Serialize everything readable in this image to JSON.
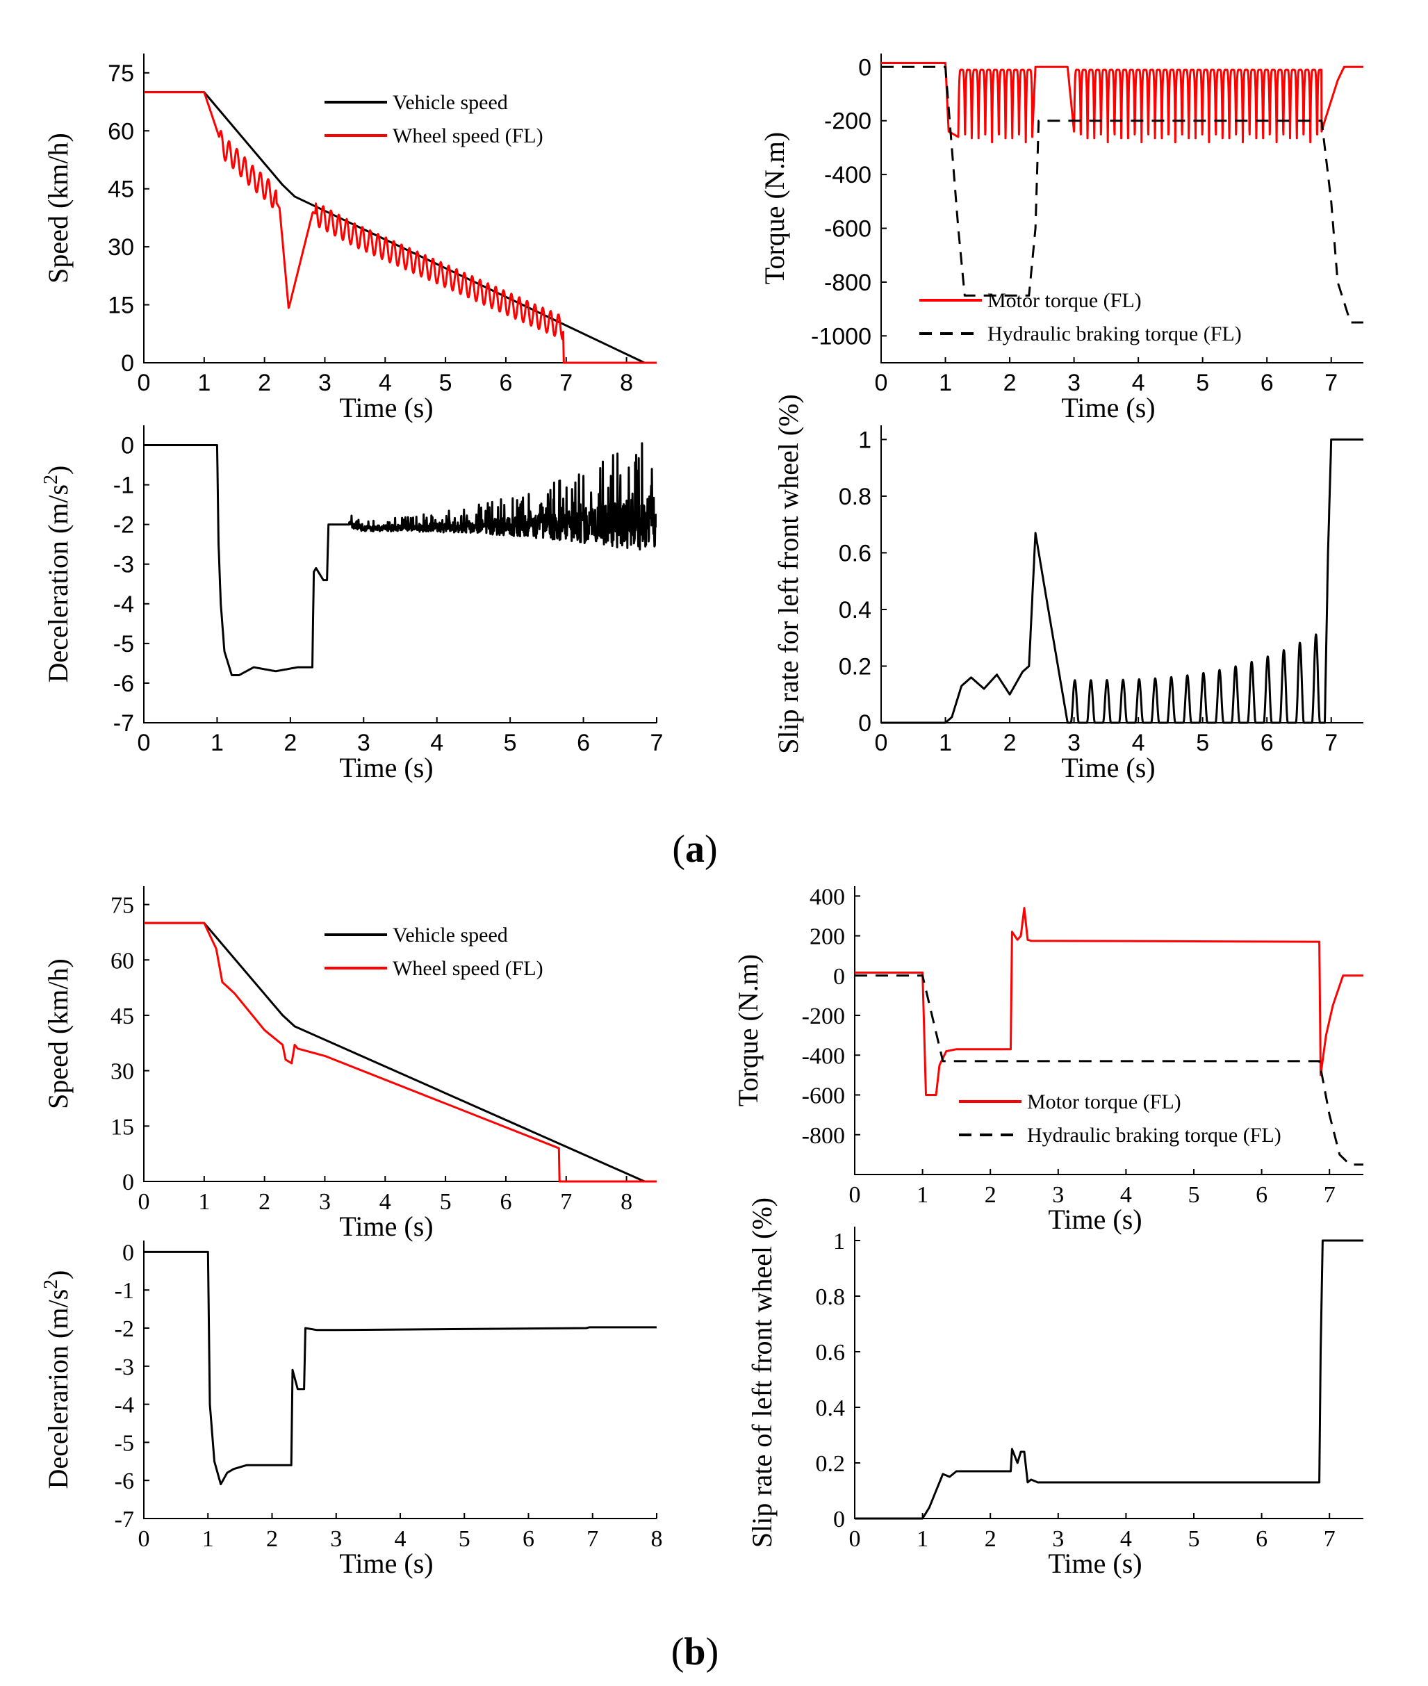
{
  "captions": {
    "a": "a",
    "b": "b"
  },
  "chart_data": [
    {
      "id": "a1",
      "type": "line",
      "xlabel": "Time (s)",
      "ylabel": "Speed (km/h)",
      "xlim": [
        0,
        8.5
      ],
      "ylim": [
        0,
        80
      ],
      "xticks": [
        0,
        1,
        2,
        3,
        4,
        5,
        6,
        7,
        8
      ],
      "yticks": [
        0,
        15,
        30,
        45,
        60,
        75
      ],
      "legend": {
        "position": "top-center",
        "entries": [
          "Vehicle speed",
          "Wheel speed (FL)"
        ]
      },
      "series": [
        {
          "name": "Vehicle speed",
          "color": "#000000",
          "style": "solid",
          "x": [
            0,
            1,
            2.3,
            2.5,
            8.3,
            8.5
          ],
          "y": [
            70,
            70,
            46,
            43,
            0,
            0
          ]
        },
        {
          "name": "Wheel speed (FL)",
          "color": "#ff0000",
          "style": "solid",
          "x": [
            0,
            1,
            1.3,
            1.5,
            1.8,
            2.1,
            2.25,
            2.4,
            2.8,
            3.5,
            4.5,
            5.5,
            6.5,
            6.95,
            6.96,
            7.0,
            8.5
          ],
          "y": [
            70,
            70,
            56,
            53,
            48,
            44,
            40,
            14,
            39,
            33,
            26,
            19,
            12,
            9,
            0,
            0,
            0
          ],
          "oscillation": {
            "start": 1.25,
            "end": 6.95,
            "amplitude_approx": 3
          }
        }
      ]
    },
    {
      "id": "a2",
      "type": "line",
      "xlabel": "Time (s)",
      "ylabel": "Torque (N.m)",
      "xlim": [
        0,
        7.5
      ],
      "ylim": [
        -1100,
        50
      ],
      "xticks": [
        0,
        1,
        2,
        3,
        4,
        5,
        6,
        7
      ],
      "yticks": [
        0,
        -200,
        -400,
        -600,
        -800,
        -1000
      ],
      "legend": {
        "position": "bottom-center",
        "entries": [
          "Motor torque (FL)",
          "Hydraulic braking torque (FL)"
        ]
      },
      "series": [
        {
          "name": "Motor torque (FL)",
          "color": "#ff0000",
          "style": "solid",
          "x": [
            0,
            1.0,
            1.05,
            1.2,
            2.35,
            2.4,
            2.9,
            3.0,
            6.85,
            6.9,
            7.1,
            7.2,
            7.5
          ],
          "y": [
            15,
            15,
            -240,
            -260,
            -260,
            0,
            0,
            -240,
            -240,
            -200,
            -50,
            0,
            0
          ],
          "oscillation": {
            "segments": [
              [
                1.2,
                2.35
              ],
              [
                3.0,
                6.85
              ]
            ],
            "range": [
              -280,
              -10
            ]
          }
        },
        {
          "name": "Hydraulic braking torque (FL)",
          "color": "#000000",
          "style": "dashed",
          "x": [
            0,
            1.0,
            1.2,
            1.3,
            2.3,
            2.4,
            2.45,
            6.85,
            7.0,
            7.1,
            7.3,
            7.5
          ],
          "y": [
            0,
            0,
            -600,
            -850,
            -850,
            -600,
            -200,
            -200,
            -500,
            -800,
            -950,
            -950
          ]
        }
      ]
    },
    {
      "id": "a3",
      "type": "line",
      "xlabel": "Time (s)",
      "ylabel": "Deceleration (m/s2)",
      "ylabel_parts": {
        "main": "Deceleration (m/s",
        "sup": "2",
        "end": ")"
      },
      "xlim": [
        0,
        7
      ],
      "ylim": [
        -7,
        0.5
      ],
      "xticks": [
        0,
        1,
        2,
        3,
        4,
        5,
        6,
        7
      ],
      "yticks": [
        0,
        -1,
        -2,
        -3,
        -4,
        -5,
        -6,
        -7
      ],
      "series": [
        {
          "name": "Deceleration",
          "color": "#000000",
          "style": "solid",
          "x": [
            0,
            1.0,
            1.02,
            1.05,
            1.1,
            1.2,
            1.3,
            1.5,
            1.8,
            2.1,
            2.3,
            2.32,
            2.35,
            2.45,
            2.5,
            2.52,
            2.6,
            2.8,
            3.0,
            7.0
          ],
          "y": [
            0,
            0,
            -2.5,
            -4,
            -5.2,
            -5.8,
            -5.8,
            -5.6,
            -5.7,
            -5.6,
            -5.6,
            -3.2,
            -3.1,
            -3.4,
            -3.4,
            -2.0,
            -2.0,
            -2.0,
            -2.1,
            -2.0
          ],
          "noise": {
            "start": 2.8,
            "end": 7.0,
            "amplitude_start": 0.15,
            "amplitude_end": 1.5
          }
        }
      ]
    },
    {
      "id": "a4",
      "type": "line",
      "xlabel": "Time (s)",
      "ylabel": "Slip rate for left front wheel (%)",
      "xlim": [
        0,
        7.5
      ],
      "ylim": [
        0,
        1.05
      ],
      "xticks": [
        0,
        1,
        2,
        3,
        4,
        5,
        6,
        7
      ],
      "yticks": [
        0,
        0.2,
        0.4,
        0.6,
        0.8,
        1
      ],
      "series": [
        {
          "name": "Slip rate",
          "color": "#000000",
          "style": "solid",
          "x": [
            0,
            1.0,
            1.1,
            1.25,
            1.4,
            1.6,
            1.8,
            2.0,
            2.2,
            2.3,
            2.4,
            2.6,
            2.9,
            2.95,
            6.9,
            6.95,
            7.0,
            7.5
          ],
          "y": [
            0,
            0,
            0.02,
            0.13,
            0.16,
            0.12,
            0.17,
            0.1,
            0.18,
            0.2,
            0.67,
            0.4,
            0.0,
            0.0,
            0.0,
            0.6,
            1.0,
            1.0
          ],
          "oscillation": {
            "start": 2.95,
            "end": 6.9,
            "peak_start": 0.15,
            "peak_end": 0.33
          }
        }
      ]
    },
    {
      "id": "b1",
      "type": "line",
      "xlabel": "Time (s)",
      "ylabel": "Speed (km/h)",
      "xlim": [
        0,
        8.5
      ],
      "ylim": [
        0,
        80
      ],
      "xticks": [
        0,
        1,
        2,
        3,
        4,
        5,
        6,
        7,
        8
      ],
      "yticks": [
        0,
        15,
        30,
        45,
        60,
        75
      ],
      "legend": {
        "position": "top-center",
        "entries": [
          "Vehicle speed",
          "Wheel speed (FL)"
        ]
      },
      "series": [
        {
          "name": "Vehicle speed",
          "color": "#000000",
          "style": "solid",
          "x": [
            0,
            1,
            2.3,
            2.5,
            8.3,
            8.5
          ],
          "y": [
            70,
            70,
            45,
            42,
            0,
            0
          ]
        },
        {
          "name": "Wheel speed (FL)",
          "color": "#ff0000",
          "style": "solid",
          "x": [
            0,
            1,
            1.2,
            1.3,
            1.5,
            2.0,
            2.3,
            2.35,
            2.45,
            2.5,
            2.55,
            3.0,
            6.88,
            6.89,
            8.5
          ],
          "y": [
            70,
            70,
            63,
            54,
            51,
            41,
            37,
            33,
            32,
            37,
            36,
            34,
            9,
            0,
            0
          ]
        }
      ]
    },
    {
      "id": "b2",
      "type": "line",
      "xlabel": "Time (s)",
      "ylabel": "Torque (N.m)",
      "xlim": [
        0,
        7.5
      ],
      "ylim": [
        -1000,
        450
      ],
      "xticks": [
        0,
        1,
        2,
        3,
        4,
        5,
        6,
        7
      ],
      "yticks": [
        400,
        200,
        0,
        -200,
        -400,
        -600,
        -800
      ],
      "legend": {
        "position": "bottom-center",
        "entries": [
          "Motor torque (FL)",
          "Hydraulic braking torque (FL)"
        ]
      },
      "series": [
        {
          "name": "Motor torque (FL)",
          "color": "#ff0000",
          "style": "solid",
          "x": [
            0,
            1.0,
            1.05,
            1.2,
            1.25,
            1.35,
            1.5,
            2.3,
            2.32,
            2.4,
            2.45,
            2.5,
            2.55,
            2.6,
            6.85,
            6.87,
            6.95,
            7.05,
            7.2,
            7.5
          ],
          "y": [
            15,
            15,
            -600,
            -600,
            -450,
            -380,
            -370,
            -370,
            220,
            180,
            200,
            340,
            180,
            175,
            170,
            -500,
            -300,
            -150,
            0,
            0
          ]
        },
        {
          "name": "Hydraulic braking torque (FL)",
          "color": "#000000",
          "style": "dashed",
          "x": [
            0,
            1.0,
            1.3,
            6.85,
            7.0,
            7.15,
            7.3,
            7.5
          ],
          "y": [
            0,
            0,
            -430,
            -430,
            -700,
            -900,
            -950,
            -950
          ]
        }
      ]
    },
    {
      "id": "b3",
      "type": "line",
      "xlabel": "Time (s)",
      "ylabel": "Decelerarion (m/s2)",
      "ylabel_parts": {
        "main": "Decelerarion (m/s",
        "sup": "2",
        "end": ")"
      },
      "xlim": [
        0,
        8
      ],
      "ylim": [
        -7,
        0.3
      ],
      "xticks": [
        0,
        1,
        2,
        3,
        4,
        5,
        6,
        7,
        8
      ],
      "yticks": [
        0,
        -1,
        -2,
        -3,
        -4,
        -5,
        -6,
        -7
      ],
      "series": [
        {
          "name": "Deceleration",
          "color": "#000000",
          "style": "solid",
          "x": [
            0,
            1.0,
            1.03,
            1.1,
            1.2,
            1.3,
            1.4,
            1.6,
            2.3,
            2.32,
            2.4,
            2.42,
            2.5,
            2.52,
            2.7,
            3.0,
            6.9,
            6.95,
            8.0
          ],
          "y": [
            0,
            0,
            -4,
            -5.5,
            -6.1,
            -5.8,
            -5.7,
            -5.6,
            -5.6,
            -3.1,
            -3.6,
            -3.6,
            -3.6,
            -2.0,
            -2.05,
            -2.05,
            -2.0,
            -1.98,
            -1.98
          ]
        }
      ]
    },
    {
      "id": "b4",
      "type": "line",
      "xlabel": "Time (s)",
      "ylabel": "Slip rate of left front wheel (%)",
      "xlim": [
        0,
        7.5
      ],
      "ylim": [
        0,
        1.05
      ],
      "xticks": [
        0,
        1,
        2,
        3,
        4,
        5,
        6,
        7
      ],
      "yticks": [
        0,
        0.2,
        0.4,
        0.6,
        0.8,
        1
      ],
      "series": [
        {
          "name": "Slip rate",
          "color": "#000000",
          "style": "solid",
          "x": [
            0,
            1.0,
            1.1,
            1.2,
            1.3,
            1.4,
            1.5,
            2.3,
            2.32,
            2.4,
            2.45,
            2.5,
            2.55,
            2.6,
            2.7,
            6.85,
            6.87,
            6.9,
            7.5
          ],
          "y": [
            0,
            0,
            0.04,
            0.1,
            0.16,
            0.15,
            0.17,
            0.17,
            0.25,
            0.2,
            0.24,
            0.24,
            0.13,
            0.14,
            0.13,
            0.13,
            0.6,
            1.0,
            1.0
          ]
        }
      ]
    }
  ]
}
